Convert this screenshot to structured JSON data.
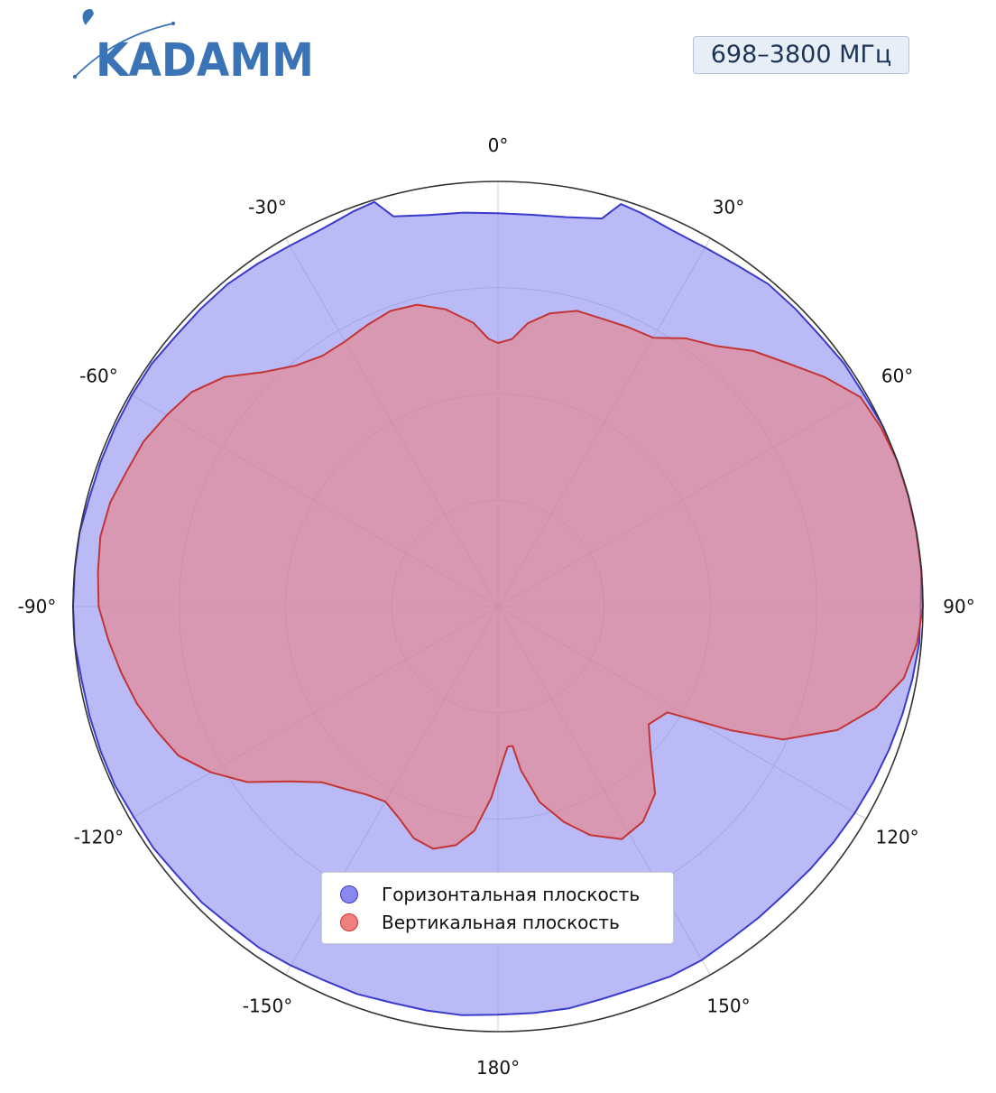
{
  "brand": {
    "logo_text": "KADAMM",
    "color": "#3a74b6"
  },
  "frequency_badge": "698–3800 МГц",
  "legend": {
    "items": [
      {
        "label": "Горизонтальная плоскость",
        "color": "#8888f0",
        "edge": "#3a3acc"
      },
      {
        "label": "Вертикальная плоскость",
        "color": "#f08080",
        "edge": "#c43434"
      }
    ]
  },
  "chart_data": {
    "type": "polar",
    "radial_range": [
      0,
      1
    ],
    "radial_gridlines": [
      0.25,
      0.5,
      0.75,
      1.0
    ],
    "angle_direction": "clockwise",
    "zero_position": "top",
    "angular_tick_labels": [
      "0°",
      "30°",
      "60°",
      "90°",
      "120°",
      "150°",
      "180°",
      "-150°",
      "-120°",
      "-90°",
      "-60°",
      "-30°"
    ],
    "angular_tick_values": [
      0,
      30,
      60,
      90,
      120,
      150,
      180,
      -150,
      -120,
      -90,
      -60,
      -30
    ],
    "grid": true,
    "legend_position": "bottom-center",
    "series": [
      {
        "name": "Горизонтальная плоскость",
        "color": "#8888f0",
        "line_color": "#3a3acc",
        "points": [
          [
            0,
            0.925
          ],
          [
            5,
            0.925
          ],
          [
            10,
            0.93
          ],
          [
            15,
            0.945
          ],
          [
            17,
            0.99
          ],
          [
            20,
            0.985
          ],
          [
            25,
            0.975
          ],
          [
            30,
            0.975
          ],
          [
            35,
            0.98
          ],
          [
            40,
            0.99
          ],
          [
            45,
            0.99
          ],
          [
            50,
            0.99
          ],
          [
            55,
            0.995
          ],
          [
            60,
            0.995
          ],
          [
            65,
            1.0
          ],
          [
            70,
            1.0
          ],
          [
            75,
            1.0
          ],
          [
            80,
            1.0
          ],
          [
            85,
            1.0
          ],
          [
            90,
            0.995
          ],
          [
            95,
            0.995
          ],
          [
            100,
            0.99
          ],
          [
            105,
            0.985
          ],
          [
            110,
            0.98
          ],
          [
            115,
            0.975
          ],
          [
            120,
            0.97
          ],
          [
            125,
            0.965
          ],
          [
            130,
            0.96
          ],
          [
            135,
            0.955
          ],
          [
            140,
            0.955
          ],
          [
            145,
            0.955
          ],
          [
            150,
            0.96
          ],
          [
            155,
            0.96
          ],
          [
            160,
            0.955
          ],
          [
            165,
            0.955
          ],
          [
            170,
            0.96
          ],
          [
            175,
            0.96
          ],
          [
            180,
            0.96
          ],
          [
            -175,
            0.965
          ],
          [
            -170,
            0.965
          ],
          [
            -165,
            0.965
          ],
          [
            -160,
            0.97
          ],
          [
            -155,
            0.97
          ],
          [
            -150,
            0.975
          ],
          [
            -145,
            0.98
          ],
          [
            -140,
            0.98
          ],
          [
            -135,
            0.985
          ],
          [
            -130,
            0.985
          ],
          [
            -125,
            0.99
          ],
          [
            -120,
            0.99
          ],
          [
            -115,
            0.995
          ],
          [
            -110,
            0.995
          ],
          [
            -105,
            0.995
          ],
          [
            -100,
            0.995
          ],
          [
            -95,
            1.0
          ],
          [
            -90,
            1.0
          ],
          [
            -85,
            1.0
          ],
          [
            -80,
            1.0
          ],
          [
            -75,
            0.995
          ],
          [
            -70,
            0.995
          ],
          [
            -65,
            0.995
          ],
          [
            -60,
            0.995
          ],
          [
            -55,
            0.995
          ],
          [
            -50,
            0.99
          ],
          [
            -45,
            0.99
          ],
          [
            -40,
            0.99
          ],
          [
            -35,
            0.985
          ],
          [
            -30,
            0.98
          ],
          [
            -25,
            0.98
          ],
          [
            -20,
            0.99
          ],
          [
            -17,
            0.995
          ],
          [
            -15,
            0.95
          ],
          [
            -10,
            0.935
          ],
          [
            -5,
            0.93
          ],
          [
            0,
            0.925
          ]
        ]
      },
      {
        "name": "Вертикальная плоскость",
        "color": "#f08080",
        "line_color": "#c43434",
        "points": [
          [
            0,
            0.62
          ],
          [
            3,
            0.63
          ],
          [
            6,
            0.67
          ],
          [
            10,
            0.7
          ],
          [
            15,
            0.72
          ],
          [
            20,
            0.72
          ],
          [
            25,
            0.725
          ],
          [
            30,
            0.73
          ],
          [
            35,
            0.77
          ],
          [
            40,
            0.8
          ],
          [
            45,
            0.85
          ],
          [
            50,
            0.89
          ],
          [
            55,
            0.94
          ],
          [
            60,
            0.985
          ],
          [
            65,
            0.995
          ],
          [
            70,
            1.0
          ],
          [
            75,
            1.0
          ],
          [
            80,
            1.0
          ],
          [
            85,
            1.0
          ],
          [
            90,
            1.0
          ],
          [
            95,
            0.99
          ],
          [
            100,
            0.97
          ],
          [
            105,
            0.92
          ],
          [
            110,
            0.85
          ],
          [
            115,
            0.74
          ],
          [
            118,
            0.62
          ],
          [
            122,
            0.47
          ],
          [
            128,
            0.45
          ],
          [
            133,
            0.49
          ],
          [
            140,
            0.575
          ],
          [
            146,
            0.61
          ],
          [
            152,
            0.62
          ],
          [
            158,
            0.58
          ],
          [
            163,
            0.53
          ],
          [
            168,
            0.47
          ],
          [
            172,
            0.39
          ],
          [
            174,
            0.33
          ],
          [
            176,
            0.33
          ],
          [
            178,
            0.36
          ],
          [
            -178,
            0.45
          ],
          [
            -174,
            0.53
          ],
          [
            -170,
            0.57
          ],
          [
            -165,
            0.59
          ],
          [
            -160,
            0.58
          ],
          [
            -155,
            0.55
          ],
          [
            -150,
            0.53
          ],
          [
            -145,
            0.54
          ],
          [
            -140,
            0.56
          ],
          [
            -135,
            0.585
          ],
          [
            -130,
            0.64
          ],
          [
            -125,
            0.72
          ],
          [
            -120,
            0.78
          ],
          [
            -115,
            0.83
          ],
          [
            -110,
            0.855
          ],
          [
            -105,
            0.88
          ],
          [
            -100,
            0.9
          ],
          [
            -95,
            0.92
          ],
          [
            -90,
            0.94
          ],
          [
            -85,
            0.945
          ],
          [
            -80,
            0.95
          ],
          [
            -75,
            0.945
          ],
          [
            -70,
            0.93
          ],
          [
            -65,
            0.92
          ],
          [
            -60,
            0.9
          ],
          [
            -55,
            0.88
          ],
          [
            -50,
            0.84
          ],
          [
            -45,
            0.78
          ],
          [
            -40,
            0.74
          ],
          [
            -35,
            0.72
          ],
          [
            -30,
            0.72
          ],
          [
            -25,
            0.73
          ],
          [
            -20,
            0.74
          ],
          [
            -15,
            0.735
          ],
          [
            -10,
            0.71
          ],
          [
            -5,
            0.67
          ],
          [
            -2,
            0.63
          ],
          [
            0,
            0.62
          ]
        ]
      }
    ]
  }
}
